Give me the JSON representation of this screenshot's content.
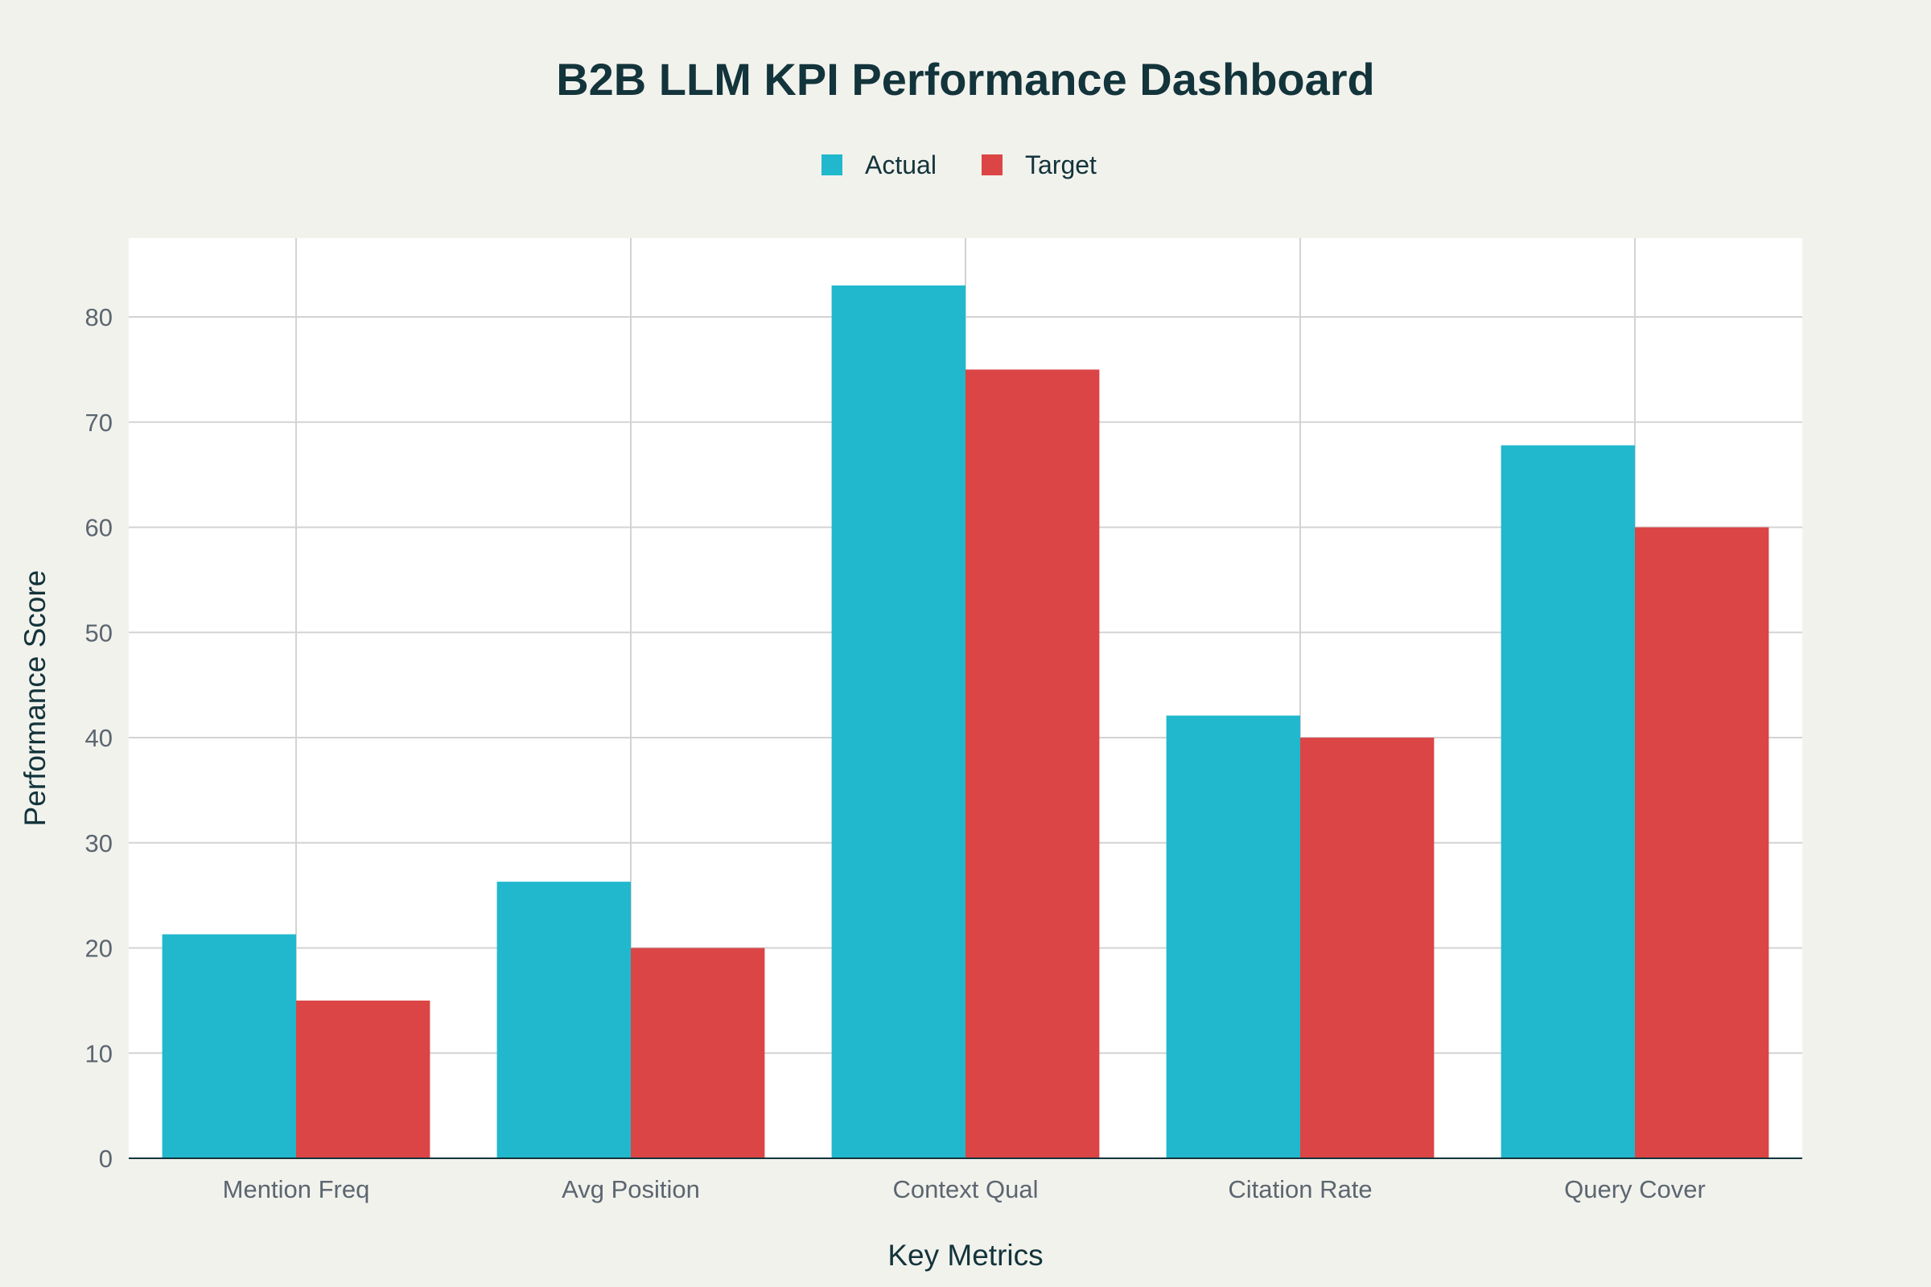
{
  "chart_data": {
    "type": "bar",
    "title": "B2B LLM KPI Performance Dashboard",
    "xlabel": "Key Metrics",
    "ylabel": "Performance Score",
    "categories": [
      "Mention Freq",
      "Avg Position",
      "Context Qual",
      "Citation Rate",
      "Query Cover"
    ],
    "series": [
      {
        "name": "Actual",
        "color": "#21b8cd",
        "values": [
          21.3,
          26.3,
          83,
          42.1,
          67.8
        ]
      },
      {
        "name": "Target",
        "color": "#db4545",
        "values": [
          15,
          20,
          75,
          40,
          60
        ]
      }
    ],
    "ylim": [
      0,
      87.5
    ],
    "yticks": [
      0,
      10,
      20,
      30,
      40,
      50,
      60,
      70,
      80
    ],
    "grid": true,
    "legend_position": "top-center"
  },
  "colors": {
    "background": "#f2f2ed",
    "plot_background": "#ffffff",
    "grid": "#d3d3d3",
    "axis_line": "#13343b"
  }
}
